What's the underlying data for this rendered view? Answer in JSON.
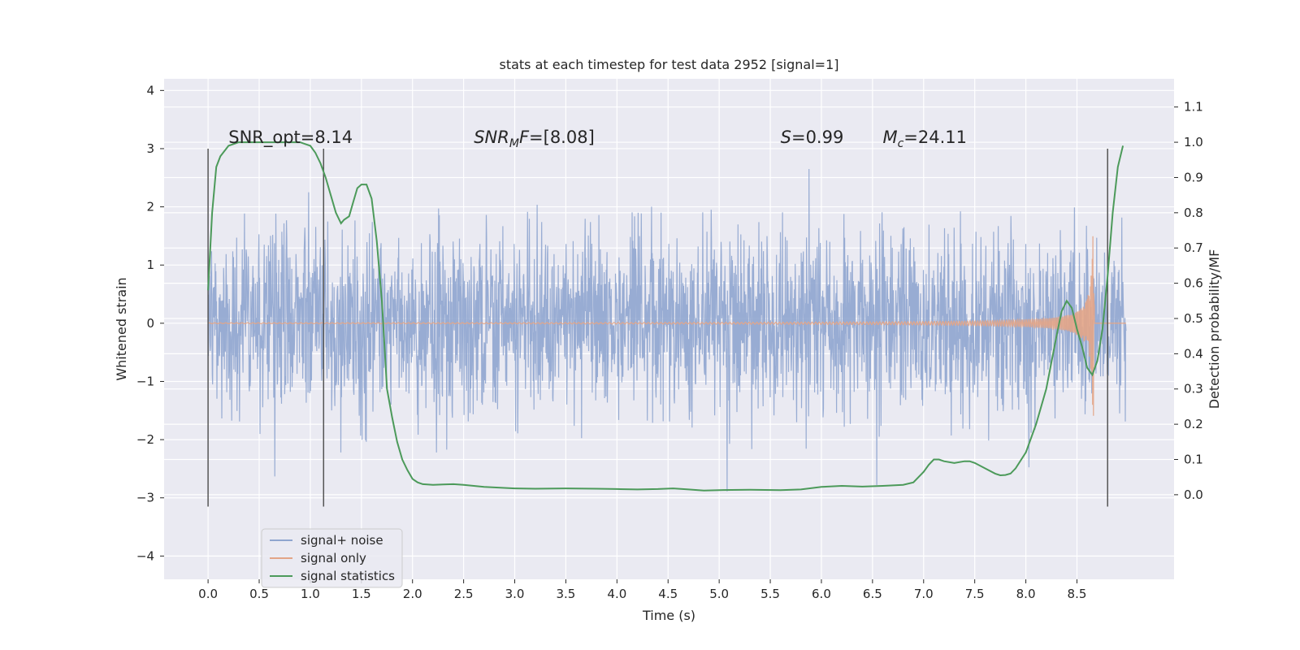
{
  "chart_data": {
    "type": "line",
    "title": "stats at each timestep for test data 2952 [signal=1]",
    "xlabel": "Time (s)",
    "ylabel": "Whitened strain",
    "y2label": "Detection probability/MF",
    "xlim": [
      -0.43,
      9.45
    ],
    "ylim": [
      -4.4,
      4.2
    ],
    "y2lim": [
      -0.24,
      1.18
    ],
    "xticks": [
      "0.0",
      "0.5",
      "1.0",
      "1.5",
      "2.0",
      "2.5",
      "3.0",
      "3.5",
      "4.0",
      "4.5",
      "5.0",
      "5.5",
      "6.0",
      "6.5",
      "7.0",
      "7.5",
      "8.0",
      "8.5"
    ],
    "yticks": [
      "4",
      "3",
      "2",
      "1",
      "0",
      "−1",
      "−2",
      "−3",
      "−4"
    ],
    "y2ticks": [
      "1.1",
      "1.0",
      "0.9",
      "0.8",
      "0.7",
      "0.6",
      "0.5",
      "0.4",
      "0.3",
      "0.2",
      "0.1",
      "0.0"
    ],
    "grid": true,
    "legend_position": "lower-left",
    "colors": {
      "plot_bg": "#eaeaf2",
      "noise": "#8fa5cf",
      "signal": "#e3a587",
      "stats": "#4c9a5a",
      "vline": "#555555"
    },
    "annotations": [
      {
        "kind": "plain",
        "text": "SNR_opt=8.14",
        "x": 0.2,
        "y": 3.1
      },
      {
        "kind": "sub",
        "base": "SNR",
        "sub": "M",
        "rest": "F=[8.08]",
        "x": 2.6,
        "y": 3.1
      },
      {
        "kind": "italic",
        "base": "S",
        "rest": "=0.99",
        "x": 5.6,
        "y": 3.1
      },
      {
        "kind": "sub",
        "base": "M",
        "sub": "c",
        "rest": "=24.11",
        "x": 6.6,
        "y": 3.1
      }
    ],
    "vlines": [
      {
        "x": 0.0,
        "y": [
          -3.15,
          3.0
        ]
      },
      {
        "x": 1.13,
        "y": [
          -3.15,
          3.0
        ]
      },
      {
        "x": 8.8,
        "y": [
          -3.15,
          3.0
        ]
      }
    ],
    "series": [
      {
        "name": "signal+ noise",
        "description_x_range": [
          0.0,
          8.98
        ],
        "noise_std": 0.75
      },
      {
        "name": "signal only",
        "chirp": {
          "t_start": 0.0,
          "t_merge": 8.67,
          "peak": 1.9
        }
      },
      {
        "name": "signal statistics",
        "axis": "right",
        "x": [
          0.0,
          0.04,
          0.08,
          0.12,
          0.2,
          0.3,
          0.5,
          0.7,
          0.9,
          1.0,
          1.05,
          1.1,
          1.15,
          1.2,
          1.25,
          1.3,
          1.33,
          1.38,
          1.42,
          1.46,
          1.5,
          1.55,
          1.6,
          1.65,
          1.7,
          1.75,
          1.8,
          1.85,
          1.9,
          1.95,
          2.0,
          2.05,
          2.1,
          2.2,
          2.3,
          2.4,
          2.5,
          2.7,
          3.0,
          3.2,
          3.5,
          3.8,
          4.0,
          4.2,
          4.4,
          4.55,
          4.7,
          4.85,
          5.0,
          5.3,
          5.6,
          5.8,
          6.0,
          6.2,
          6.4,
          6.6,
          6.8,
          6.9,
          6.95,
          7.0,
          7.05,
          7.1,
          7.15,
          7.2,
          7.3,
          7.4,
          7.45,
          7.5,
          7.6,
          7.7,
          7.75,
          7.8,
          7.85,
          7.9,
          8.0,
          8.1,
          8.2,
          8.3,
          8.35,
          8.4,
          8.45,
          8.5,
          8.55,
          8.6,
          8.65,
          8.7,
          8.75,
          8.8,
          8.85,
          8.9,
          8.95
        ],
        "values": [
          0.58,
          0.8,
          0.93,
          0.96,
          0.99,
          1.0,
          1.0,
          1.0,
          1.0,
          0.99,
          0.97,
          0.94,
          0.9,
          0.85,
          0.8,
          0.77,
          0.78,
          0.79,
          0.83,
          0.87,
          0.88,
          0.88,
          0.84,
          0.72,
          0.55,
          0.3,
          0.22,
          0.15,
          0.1,
          0.07,
          0.045,
          0.035,
          0.03,
          0.028,
          0.029,
          0.03,
          0.028,
          0.022,
          0.018,
          0.017,
          0.018,
          0.017,
          0.016,
          0.015,
          0.016,
          0.018,
          0.015,
          0.012,
          0.013,
          0.014,
          0.013,
          0.015,
          0.022,
          0.025,
          0.023,
          0.025,
          0.028,
          0.035,
          0.05,
          0.065,
          0.085,
          0.1,
          0.1,
          0.095,
          0.09,
          0.095,
          0.095,
          0.09,
          0.075,
          0.06,
          0.055,
          0.056,
          0.06,
          0.075,
          0.12,
          0.2,
          0.3,
          0.45,
          0.52,
          0.55,
          0.53,
          0.47,
          0.42,
          0.36,
          0.34,
          0.38,
          0.47,
          0.62,
          0.8,
          0.93,
          0.99
        ]
      }
    ]
  }
}
